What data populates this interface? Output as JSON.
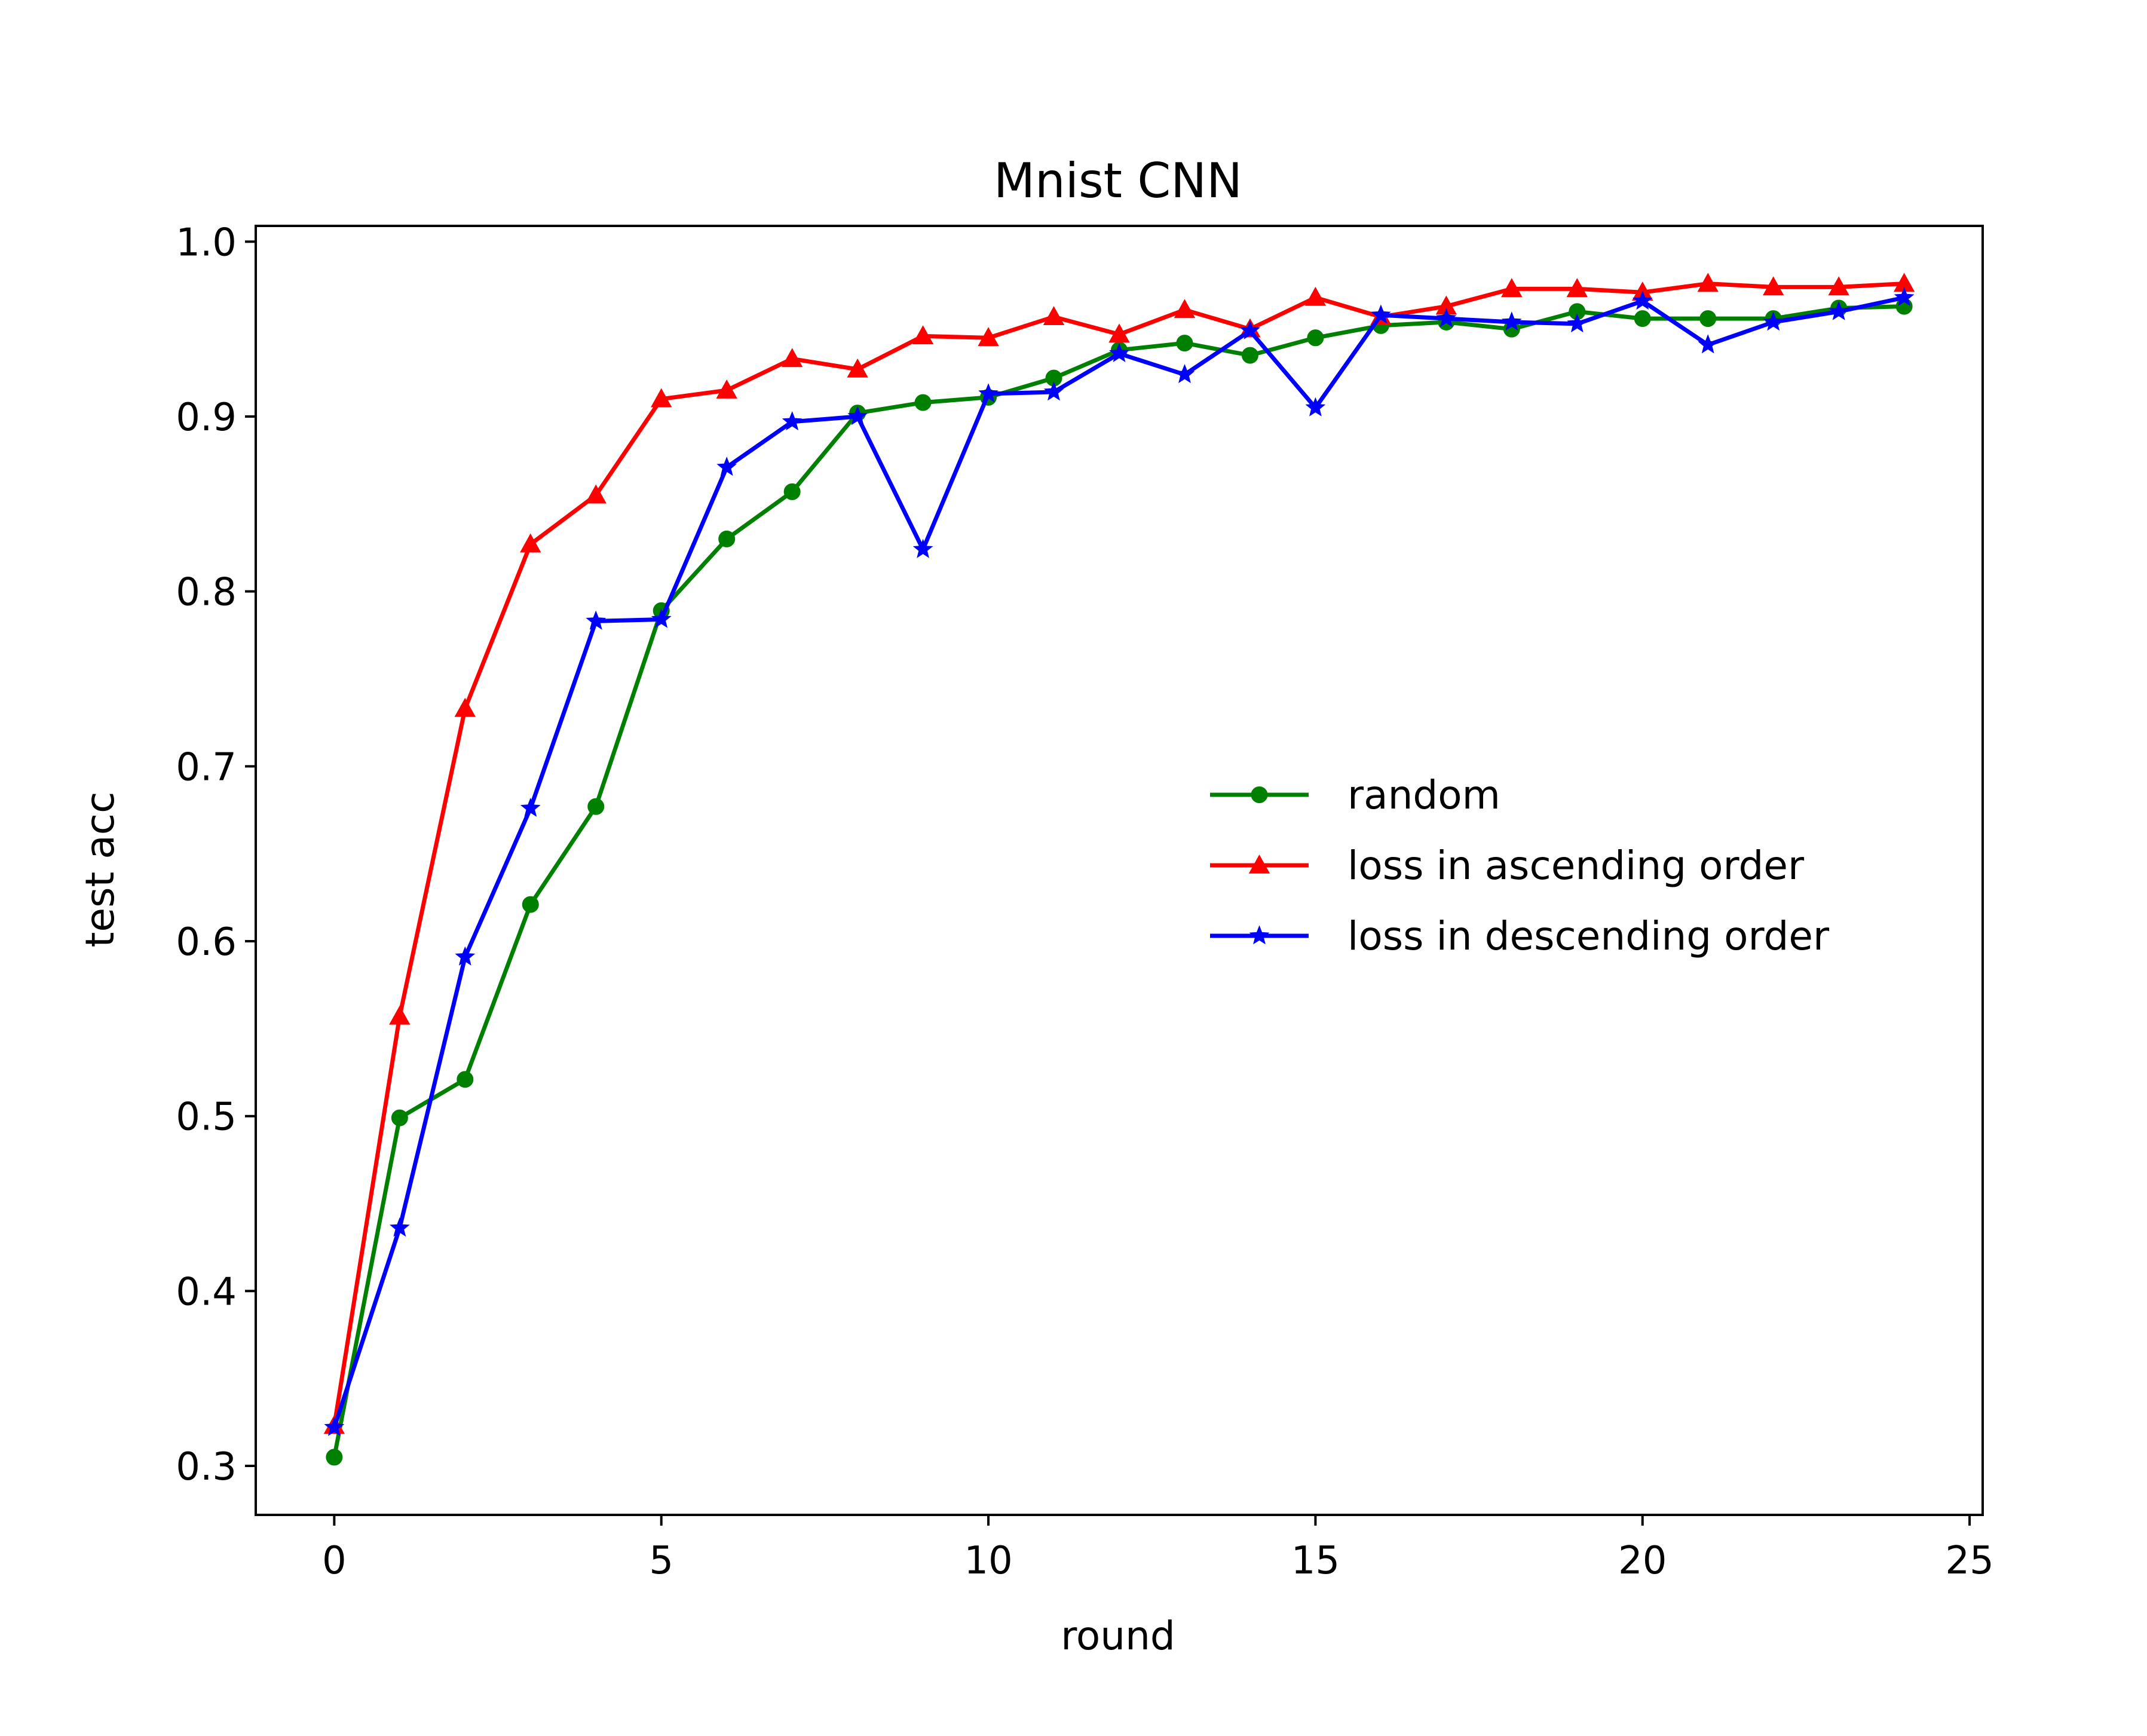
{
  "chart_data": {
    "type": "line",
    "title": "Mnist CNN",
    "xlabel": "round",
    "ylabel": "test acc",
    "xlim": [
      -1.2,
      25.2
    ],
    "ylim": [
      0.272,
      1.009
    ],
    "xticks": [
      0,
      5,
      10,
      15,
      20,
      25
    ],
    "yticks": [
      0.3,
      0.4,
      0.5,
      0.6,
      0.7,
      0.8,
      0.9,
      1.0
    ],
    "xtick_labels": [
      "0",
      "5",
      "10",
      "15",
      "20",
      "25"
    ],
    "ytick_labels": [
      "0.3",
      "0.4",
      "0.5",
      "0.6",
      "0.7",
      "0.8",
      "0.9",
      "1.0"
    ],
    "grid": false,
    "legend_position": "center-right",
    "x": [
      0,
      1,
      2,
      3,
      4,
      5,
      6,
      7,
      8,
      9,
      10,
      11,
      12,
      13,
      14,
      15,
      16,
      17,
      18,
      19,
      20,
      21,
      22,
      23,
      24
    ],
    "series": [
      {
        "name": "random",
        "color": "#008000",
        "marker": "circle",
        "values": [
          0.305,
          0.499,
          0.521,
          0.621,
          0.677,
          0.789,
          0.83,
          0.857,
          0.902,
          0.908,
          0.911,
          0.922,
          0.938,
          0.942,
          0.935,
          0.945,
          0.952,
          0.954,
          0.95,
          0.96,
          0.956,
          0.956,
          0.956,
          0.962,
          0.963
        ]
      },
      {
        "name": "loss in ascending order",
        "color": "#ff0000",
        "marker": "triangle",
        "values": [
          0.323,
          0.557,
          0.733,
          0.827,
          0.855,
          0.91,
          0.915,
          0.933,
          0.927,
          0.946,
          0.945,
          0.957,
          0.947,
          0.961,
          0.95,
          0.968,
          0.957,
          0.963,
          0.973,
          0.973,
          0.971,
          0.976,
          0.974,
          0.974,
          0.976
        ]
      },
      {
        "name": "loss in descending order",
        "color": "#0000ff",
        "marker": "star",
        "values": [
          0.322,
          0.436,
          0.591,
          0.676,
          0.783,
          0.784,
          0.871,
          0.897,
          0.9,
          0.824,
          0.913,
          0.914,
          0.936,
          0.924,
          0.949,
          0.905,
          0.958,
          0.956,
          0.954,
          0.953,
          0.966,
          0.941,
          0.954,
          0.96,
          0.968
        ]
      }
    ]
  }
}
